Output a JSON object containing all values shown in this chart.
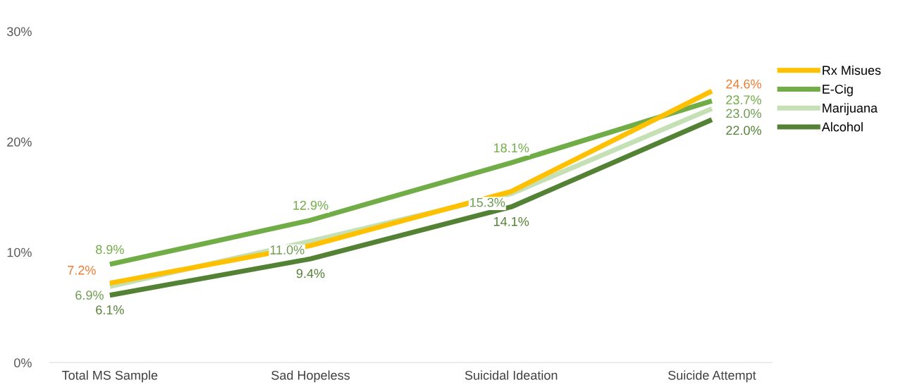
{
  "chart_data": {
    "type": "line",
    "categories": [
      "Total MS Sample",
      "Sad Hopeless",
      "Suicidal Ideation",
      "Suicide Attempt"
    ],
    "series": [
      {
        "name": "Rx Misues",
        "color": "#ffc000",
        "values": [
          7.2,
          10.6,
          15.5,
          24.6
        ],
        "value_labels": [
          "7.2%",
          null,
          null,
          "24.6%"
        ]
      },
      {
        "name": "E-Cig",
        "color": "#70ad47",
        "values": [
          8.9,
          12.9,
          18.1,
          23.7
        ],
        "value_labels": [
          "8.9%",
          "12.9%",
          "18.1%",
          "23.7%"
        ]
      },
      {
        "name": "Marijuana",
        "color": "#c5e0b4",
        "values": [
          6.9,
          11.0,
          15.3,
          23.0
        ],
        "value_labels": [
          "6.9%",
          "11.0%",
          "15.3%",
          "23.0%"
        ]
      },
      {
        "name": "Alcohol",
        "color": "#548235",
        "values": [
          6.1,
          9.4,
          14.1,
          22.0
        ],
        "value_labels": [
          "6.1%",
          "9.4%",
          "14.1%",
          "22.0%"
        ]
      }
    ],
    "ylim": [
      0,
      30
    ],
    "yticks": [
      {
        "value": 0,
        "label": "0%"
      },
      {
        "value": 10,
        "label": "10%"
      },
      {
        "value": 20,
        "label": "20%"
      },
      {
        "value": 30,
        "label": "30%"
      }
    ],
    "grid": false,
    "legend": "top right",
    "marker": "none",
    "line_style": "solid"
  }
}
